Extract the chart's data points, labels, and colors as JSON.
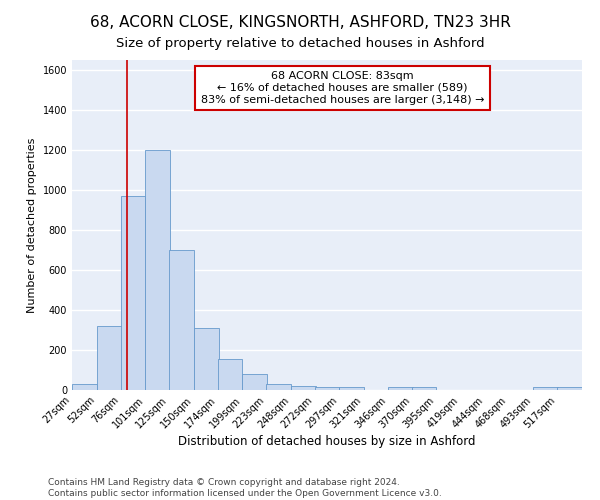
{
  "title1": "68, ACORN CLOSE, KINGSNORTH, ASHFORD, TN23 3HR",
  "title2": "Size of property relative to detached houses in Ashford",
  "xlabel": "Distribution of detached houses by size in Ashford",
  "ylabel": "Number of detached properties",
  "bins": [
    27,
    52,
    76,
    101,
    125,
    150,
    174,
    199,
    223,
    248,
    272,
    297,
    321,
    346,
    370,
    395,
    419,
    444,
    468,
    493,
    517
  ],
  "counts": [
    30,
    320,
    970,
    1200,
    700,
    310,
    155,
    80,
    30,
    20,
    15,
    15,
    0,
    15,
    15,
    0,
    0,
    0,
    0,
    15,
    15
  ],
  "bar_color": "#c9d9f0",
  "bar_edge_color": "#6699cc",
  "vline_x": 83,
  "vline_color": "#cc0000",
  "annotation_line1": "68 ACORN CLOSE: 83sqm",
  "annotation_line2": "← 16% of detached houses are smaller (589)",
  "annotation_line3": "83% of semi-detached houses are larger (3,148) →",
  "annotation_box_color": "#cc0000",
  "ylim": [
    0,
    1650
  ],
  "yticks": [
    0,
    200,
    400,
    600,
    800,
    1000,
    1200,
    1400,
    1600
  ],
  "footer": "Contains HM Land Registry data © Crown copyright and database right 2024.\nContains public sector information licensed under the Open Government Licence v3.0.",
  "plot_bg_color": "#e8eef8",
  "fig_bg_color": "#ffffff",
  "grid_color": "#ffffff",
  "title1_fontsize": 11,
  "title2_fontsize": 9.5,
  "xlabel_fontsize": 8.5,
  "ylabel_fontsize": 8,
  "tick_fontsize": 7,
  "annotation_fontsize": 8,
  "footer_fontsize": 6.5
}
